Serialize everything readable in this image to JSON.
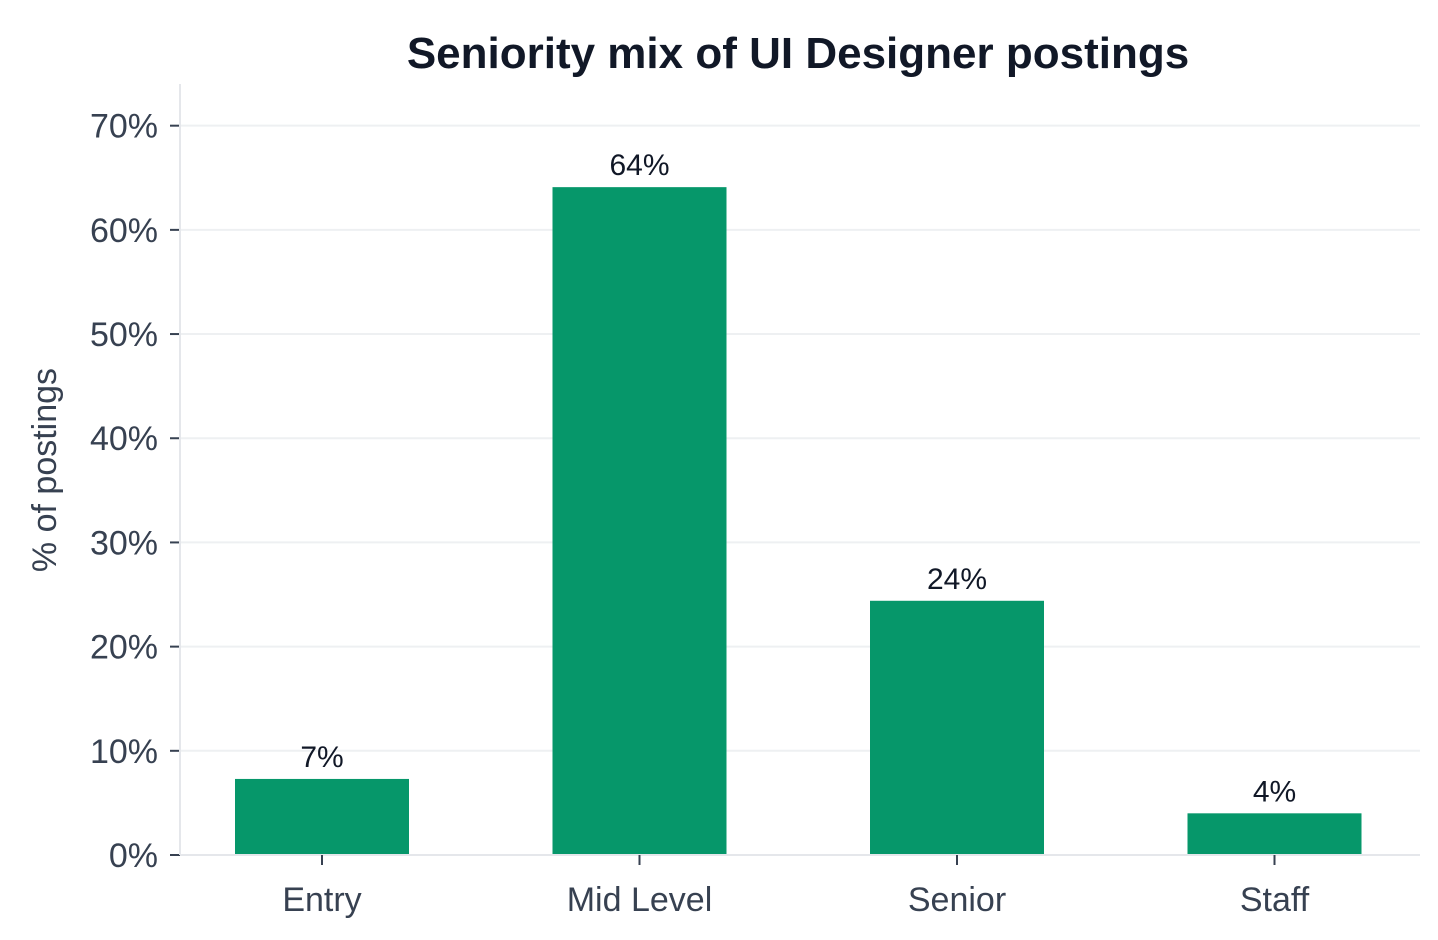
{
  "chart_data": {
    "type": "bar",
    "title": "Seniority mix of UI Designer postings",
    "xlabel": "",
    "ylabel": "% of postings",
    "categories": [
      "Entry",
      "Mid Level",
      "Senior",
      "Staff"
    ],
    "values": [
      7.3,
      64.1,
      24.4,
      4.0
    ],
    "data_labels": [
      "7%",
      "64%",
      "24%",
      "4%"
    ],
    "ylim": [
      0,
      74
    ],
    "yticks": [
      0,
      10,
      20,
      30,
      40,
      50,
      60,
      70
    ],
    "ytick_labels": [
      "0%",
      "10%",
      "20%",
      "30%",
      "40%",
      "50%",
      "60%",
      "70%"
    ],
    "grid": true,
    "bar_color": "#06976a"
  }
}
